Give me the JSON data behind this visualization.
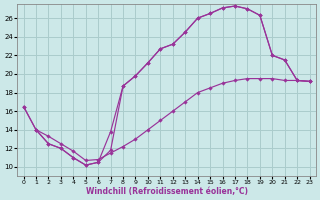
{
  "xlabel": "Windchill (Refroidissement éolien,°C)",
  "bg_color": "#cce8e8",
  "grid_color": "#aacccc",
  "line_color": "#993399",
  "xlim": [
    -0.5,
    23.5
  ],
  "ylim": [
    9.0,
    27.5
  ],
  "xtick_vals": [
    0,
    1,
    2,
    3,
    4,
    5,
    6,
    7,
    8,
    9,
    10,
    11,
    12,
    13,
    14,
    15,
    16,
    17,
    18,
    19,
    20,
    21,
    22,
    23
  ],
  "ytick_vals": [
    10,
    12,
    14,
    16,
    18,
    20,
    22,
    24,
    26
  ],
  "line1_x": [
    0,
    1,
    2,
    3,
    4,
    5,
    6,
    7,
    8,
    9,
    10,
    11,
    12,
    13,
    14,
    15,
    16,
    17,
    18,
    19,
    20,
    21,
    22,
    23
  ],
  "line1_y": [
    16.5,
    14.0,
    12.5,
    12.0,
    11.0,
    10.2,
    10.5,
    13.8,
    18.7,
    19.8,
    21.2,
    22.7,
    23.2,
    24.5,
    26.0,
    26.5,
    27.1,
    27.3,
    27.0,
    26.3,
    22.0,
    21.5,
    19.3,
    19.2
  ],
  "line2_x": [
    0,
    1,
    2,
    3,
    4,
    5,
    6,
    7,
    8,
    9,
    10,
    11,
    12,
    13,
    14,
    15,
    16,
    17,
    18,
    19,
    20,
    21,
    22,
    23
  ],
  "line2_y": [
    16.5,
    14.0,
    13.3,
    12.5,
    11.7,
    10.7,
    10.8,
    11.5,
    12.2,
    13.0,
    14.0,
    15.0,
    16.0,
    17.0,
    18.0,
    18.5,
    19.0,
    19.3,
    19.5,
    19.5,
    19.5,
    19.3,
    19.3,
    19.2
  ],
  "line3_x": [
    1,
    2,
    3,
    4,
    5,
    6,
    7,
    8,
    9,
    10,
    11,
    12,
    13,
    14,
    15,
    16,
    17,
    18,
    19,
    20,
    21,
    22,
    23
  ],
  "line3_y": [
    14.0,
    12.5,
    12.0,
    11.0,
    10.2,
    10.5,
    11.8,
    18.7,
    19.8,
    21.2,
    22.7,
    23.2,
    24.5,
    26.0,
    26.5,
    27.1,
    27.3,
    27.0,
    26.3,
    22.0,
    21.5,
    19.3,
    19.2
  ]
}
